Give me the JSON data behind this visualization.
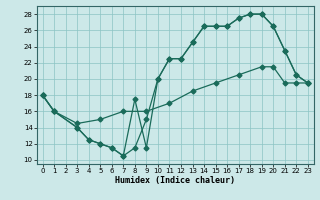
{
  "xlabel": "Humidex (Indice chaleur)",
  "xlim": [
    -0.5,
    23.5
  ],
  "ylim": [
    9.5,
    29
  ],
  "xticks": [
    0,
    1,
    2,
    3,
    4,
    5,
    6,
    7,
    8,
    9,
    10,
    11,
    12,
    13,
    14,
    15,
    16,
    17,
    18,
    19,
    20,
    21,
    22,
    23
  ],
  "yticks": [
    10,
    12,
    14,
    16,
    18,
    20,
    22,
    24,
    26,
    28
  ],
  "bg_color": "#cce8e8",
  "line_color": "#1a6b5a",
  "line1_x": [
    0,
    1,
    3,
    4,
    5,
    6,
    7,
    8,
    9,
    10,
    11,
    12,
    13,
    14,
    15,
    16,
    17,
    18,
    19,
    20,
    21,
    22,
    23
  ],
  "line1_y": [
    18,
    16,
    14,
    12.5,
    12,
    11.5,
    10.5,
    17.5,
    11.5,
    20,
    22.5,
    22.5,
    24.5,
    26.5,
    26.5,
    26.5,
    27.5,
    28,
    28,
    26.5,
    23.5,
    20.5,
    19.5
  ],
  "line2_x": [
    0,
    1,
    3,
    4,
    5,
    6,
    7,
    8,
    9,
    10,
    11,
    12,
    13,
    14,
    15,
    16,
    17,
    18,
    19,
    20,
    21,
    22,
    23
  ],
  "line2_y": [
    18,
    16,
    14,
    12.5,
    12,
    11.5,
    10.5,
    11.5,
    15,
    20,
    22.5,
    22.5,
    24.5,
    26.5,
    26.5,
    26.5,
    27.5,
    28,
    28,
    26.5,
    23.5,
    20.5,
    19.5
  ],
  "line3_x": [
    0,
    1,
    3,
    5,
    7,
    9,
    11,
    13,
    15,
    17,
    19,
    20,
    21,
    22,
    23
  ],
  "line3_y": [
    18,
    16,
    14.5,
    15,
    16,
    16,
    17,
    18.5,
    19.5,
    20.5,
    21.5,
    21.5,
    19.5,
    19.5,
    19.5
  ]
}
